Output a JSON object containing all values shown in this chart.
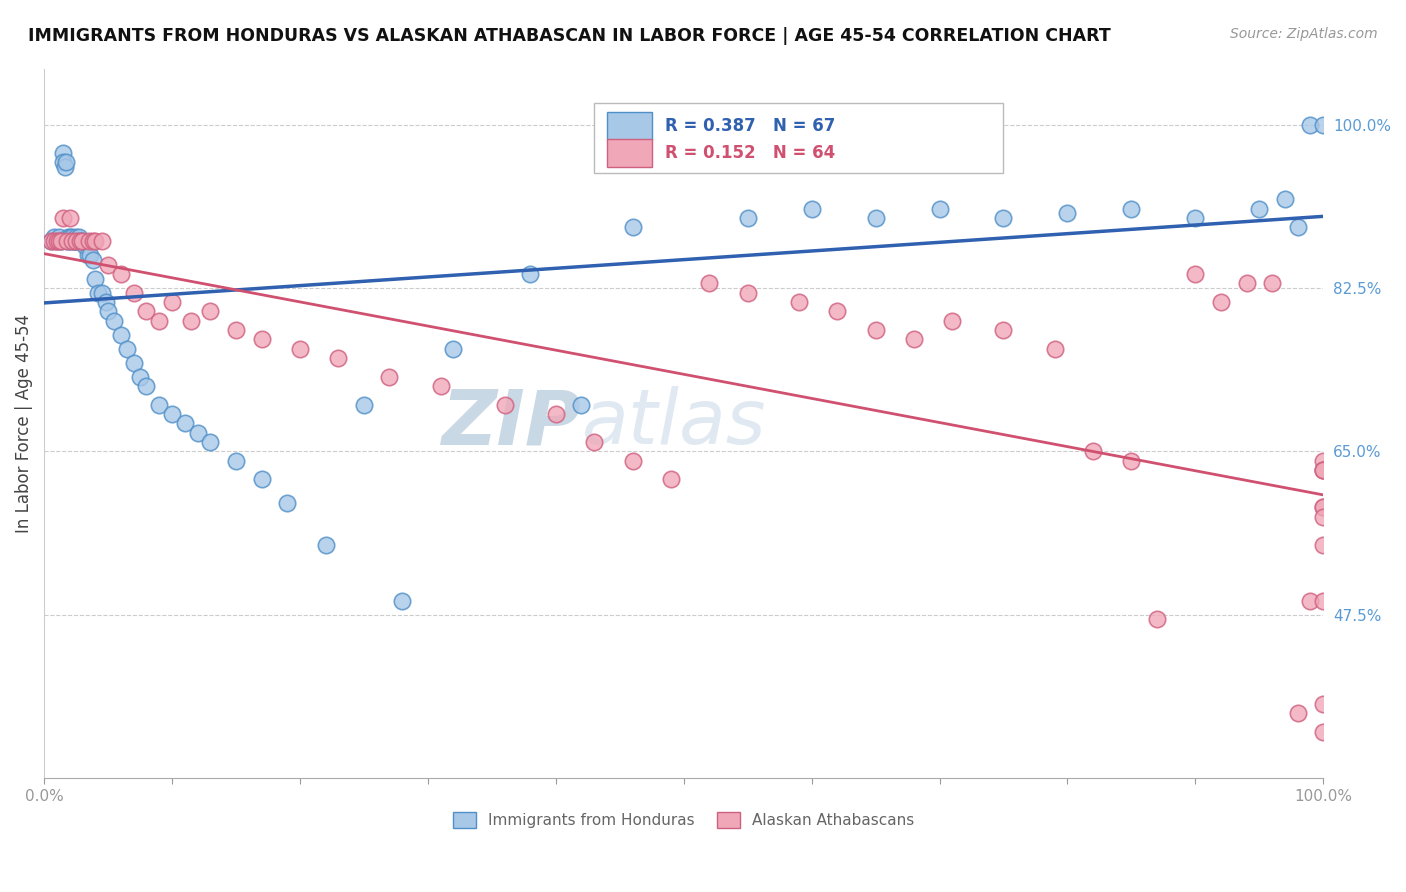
{
  "title": "IMMIGRANTS FROM HONDURAS VS ALASKAN ATHABASCAN IN LABOR FORCE | AGE 45-54 CORRELATION CHART",
  "source": "Source: ZipAtlas.com",
  "ylabel": "In Labor Force | Age 45-54",
  "xlim": [
    0.0,
    1.0
  ],
  "ylim": [
    0.3,
    1.06
  ],
  "xticks": [
    0.0,
    0.1,
    0.2,
    0.3,
    0.4,
    0.5,
    0.6,
    0.7,
    0.8,
    0.9,
    1.0
  ],
  "xticklabels": [
    "0.0%",
    "",
    "",
    "",
    "",
    "",
    "",
    "",
    "",
    "",
    "100.0%"
  ],
  "ytick_positions": [
    0.475,
    0.65,
    0.825,
    1.0
  ],
  "ytick_labels": [
    "47.5%",
    "65.0%",
    "82.5%",
    "100.0%"
  ],
  "legend_r_blue": "R = 0.387",
  "legend_n_blue": "N = 67",
  "legend_r_pink": "R = 0.152",
  "legend_n_pink": "N = 64",
  "color_blue": "#A8C8E8",
  "color_pink": "#F0A8B8",
  "color_blue_edge": "#5090C8",
  "color_pink_edge": "#D06080",
  "color_blue_line": "#3060B0",
  "color_pink_line": "#D05070",
  "color_axis_tick": "#5B9BD5",
  "watermark_zip": "ZIP",
  "watermark_atlas": "atlas",
  "blue_x": [
    0.005,
    0.008,
    0.01,
    0.012,
    0.013,
    0.015,
    0.015,
    0.016,
    0.017,
    0.018,
    0.019,
    0.02,
    0.02,
    0.021,
    0.022,
    0.023,
    0.024,
    0.025,
    0.025,
    0.026,
    0.027,
    0.028,
    0.03,
    0.032,
    0.034,
    0.036,
    0.038,
    0.04,
    0.042,
    0.045,
    0.048,
    0.05,
    0.055,
    0.06,
    0.065,
    0.07,
    0.075,
    0.08,
    0.09,
    0.1,
    0.11,
    0.12,
    0.13,
    0.15,
    0.17,
    0.19,
    0.22,
    0.25,
    0.28,
    0.32,
    0.38,
    0.42,
    0.46,
    0.5,
    0.55,
    0.6,
    0.65,
    0.7,
    0.75,
    0.8,
    0.85,
    0.9,
    0.95,
    0.97,
    0.98,
    0.99,
    1.0
  ],
  "blue_y": [
    0.875,
    0.88,
    0.875,
    0.88,
    0.875,
    0.97,
    0.96,
    0.955,
    0.96,
    0.875,
    0.88,
    0.875,
    0.88,
    0.875,
    0.88,
    0.875,
    0.875,
    0.875,
    0.88,
    0.875,
    0.88,
    0.875,
    0.875,
    0.87,
    0.86,
    0.86,
    0.855,
    0.835,
    0.82,
    0.82,
    0.81,
    0.8,
    0.79,
    0.775,
    0.76,
    0.745,
    0.73,
    0.72,
    0.7,
    0.69,
    0.68,
    0.67,
    0.66,
    0.64,
    0.62,
    0.595,
    0.55,
    0.7,
    0.49,
    0.76,
    0.84,
    0.7,
    0.89,
    0.97,
    0.9,
    0.91,
    0.9,
    0.91,
    0.9,
    0.905,
    0.91,
    0.9,
    0.91,
    0.92,
    0.89,
    1.0,
    1.0
  ],
  "pink_x": [
    0.005,
    0.008,
    0.01,
    0.012,
    0.013,
    0.015,
    0.018,
    0.02,
    0.022,
    0.025,
    0.028,
    0.03,
    0.035,
    0.038,
    0.04,
    0.045,
    0.05,
    0.06,
    0.07,
    0.08,
    0.09,
    0.1,
    0.115,
    0.13,
    0.15,
    0.17,
    0.2,
    0.23,
    0.27,
    0.31,
    0.36,
    0.4,
    0.43,
    0.46,
    0.49,
    0.52,
    0.55,
    0.59,
    0.62,
    0.65,
    0.68,
    0.71,
    0.75,
    0.79,
    0.82,
    0.85,
    0.87,
    0.9,
    0.92,
    0.94,
    0.96,
    0.98,
    0.99,
    1.0,
    1.0,
    1.0,
    1.0,
    1.0,
    1.0,
    1.0,
    1.0,
    1.0,
    1.0,
    1.0
  ],
  "pink_y": [
    0.875,
    0.875,
    0.875,
    0.875,
    0.875,
    0.9,
    0.875,
    0.9,
    0.875,
    0.875,
    0.875,
    0.875,
    0.875,
    0.875,
    0.875,
    0.875,
    0.85,
    0.84,
    0.82,
    0.8,
    0.79,
    0.81,
    0.79,
    0.8,
    0.78,
    0.77,
    0.76,
    0.75,
    0.73,
    0.72,
    0.7,
    0.69,
    0.66,
    0.64,
    0.62,
    0.83,
    0.82,
    0.81,
    0.8,
    0.78,
    0.77,
    0.79,
    0.78,
    0.76,
    0.65,
    0.64,
    0.47,
    0.84,
    0.81,
    0.83,
    0.83,
    0.37,
    0.49,
    0.55,
    0.64,
    0.59,
    0.63,
    0.59,
    0.63,
    0.58,
    0.63,
    0.49,
    0.38,
    0.35
  ]
}
